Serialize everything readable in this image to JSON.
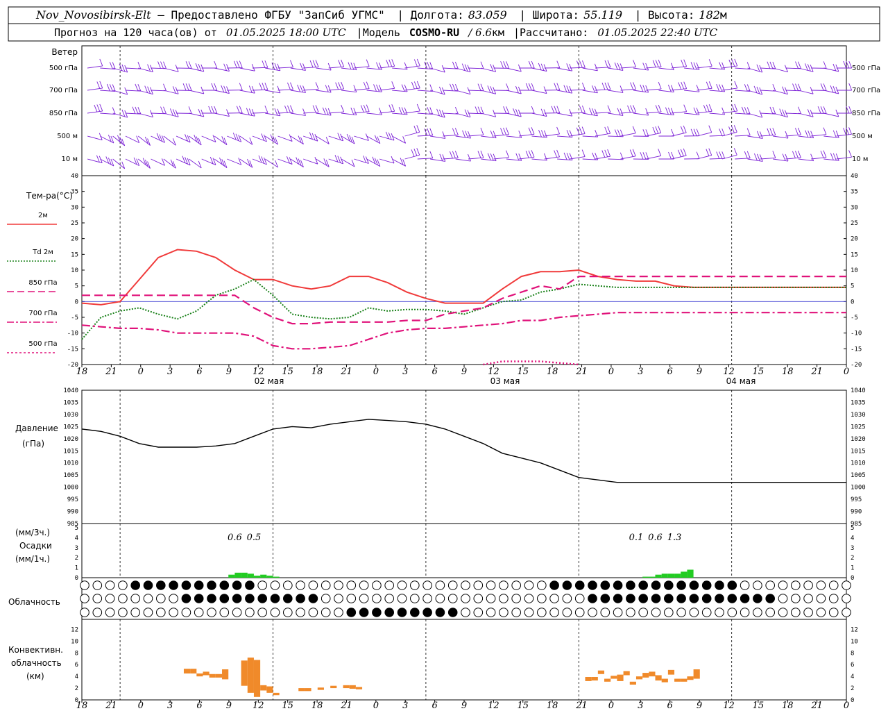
{
  "header": {
    "station": "Nov_Novosibirsk-Elt",
    "provider": " – Предоставлено ФГБУ \"ЗапСиб УГМС\"",
    "lon_label": "Долгота:",
    "lon_value": "83.059",
    "lat_label": "Широта:",
    "lat_value": "55.119",
    "alt_label": "Высота:",
    "alt_value": "182",
    "alt_unit": "м",
    "forecast_prefix": "Прогноз на 120 часа(ов) от",
    "forecast_start": "01.05.2025 18:00 UTC",
    "model_label": "Модель",
    "model_name": "COSMO-RU",
    "model_res": "/ 6.6",
    "model_res_unit": "км",
    "computed_label": "Рассчитано:",
    "computed_time": "01.05.2025 22:40 UTC"
  },
  "time_axis": {
    "hour_ticks": [
      "18",
      "21",
      "0",
      "3",
      "6",
      "9",
      "12",
      "15",
      "18",
      "21",
      "0",
      "3",
      "6",
      "9",
      "12",
      "15",
      "18",
      "21",
      "0",
      "3",
      "6",
      "9",
      "12",
      "15",
      "18",
      "21",
      "0"
    ],
    "date_labels": [
      "02 мая",
      "03 мая",
      "04 мая"
    ]
  },
  "wind_panel": {
    "title": "Ветер",
    "levels": [
      "500 гПа",
      "700 гПа",
      "850 гПа",
      "500 м",
      "10 м"
    ],
    "right_levels": [
      "500 гПа",
      "700 гПа",
      "850 гПа",
      "500 м",
      "10 м"
    ],
    "barb_color": "#7b1fd6"
  },
  "temp_panel": {
    "title": "Тем-ра(°С)",
    "ylim": [
      -20,
      40
    ],
    "yticks": [
      "40",
      "35",
      "30",
      "25",
      "20",
      "15",
      "10",
      "5",
      "0",
      "-5",
      "-10",
      "-15",
      "-20"
    ],
    "legend": [
      {
        "label": "2м",
        "color": "#f03a3a",
        "style": "solid"
      },
      {
        "label": "Td",
        "label2": "2м",
        "color": "#188018",
        "style": "dotted"
      },
      {
        "label": "850 гПа",
        "color": "#e0127a",
        "style": "dash"
      },
      {
        "label": "700 гПа",
        "color": "#e0127a",
        "style": "dashdot"
      },
      {
        "label": "500 гПа",
        "color": "#e0127a",
        "style": "dot"
      }
    ]
  },
  "pressure_panel": {
    "title": "Давление",
    "unit": "(гПа)",
    "ylim": [
      985,
      1040
    ],
    "yticks": [
      "1040",
      "1035",
      "1030",
      "1025",
      "1020",
      "1015",
      "1010",
      "1005",
      "1000",
      "995",
      "990",
      "985"
    ]
  },
  "precip_panel": {
    "unit_top": "(мм/3ч.)",
    "title": "Осадки",
    "unit_bottom": "(мм/1ч.)",
    "yticks": [
      "5",
      "4",
      "3",
      "2",
      "1",
      "0"
    ],
    "value_labels": [
      {
        "text": "0.6",
        "hour": 24
      },
      {
        "text": "0.5",
        "hour": 27
      },
      {
        "text": "0.1",
        "hour": 87
      },
      {
        "text": "0.6",
        "hour": 90
      },
      {
        "text": "1.3",
        "hour": 93
      }
    ],
    "bar_color": "#22cc22"
  },
  "cloud_panel": {
    "title": "Облачность"
  },
  "conv_panel": {
    "title1": "Конвективн.",
    "title2": "облачность",
    "unit": "(км)",
    "yticks": [
      "12",
      "10",
      "8",
      "6",
      "4",
      "2",
      "0"
    ],
    "bar_color": "#f08a2a"
  },
  "chart_data": {
    "type": "line",
    "x_hours_from_start": [
      0,
      3,
      6,
      9,
      12,
      15,
      18,
      21,
      24,
      27,
      30,
      33,
      36,
      39,
      42,
      45,
      48,
      51,
      54,
      57,
      60,
      63,
      66,
      69,
      72,
      75,
      78,
      81,
      84,
      87,
      90,
      93,
      96,
      99,
      102,
      105,
      108,
      111,
      114,
      117,
      120
    ],
    "series": [
      {
        "name": "2м",
        "values": [
          -0.5,
          -1,
          0,
          7,
          14,
          16.5,
          16,
          14,
          10,
          7,
          7,
          5,
          4,
          5,
          8,
          8,
          6,
          3,
          1,
          -0.5,
          -0.5,
          -0.5,
          4,
          8,
          9.5,
          9.5,
          10,
          8,
          7,
          6.5,
          6.5,
          5,
          4.5,
          4.5,
          4.5,
          4.5,
          4.5,
          4.5,
          4.5,
          4.5,
          4.5
        ]
      },
      {
        "name": "Td 2м",
        "values": [
          -12,
          -5,
          -3,
          -2,
          -4,
          -5.5,
          -3,
          2,
          4,
          7,
          2,
          -4,
          -5,
          -5.5,
          -5,
          -2,
          -3,
          -2.5,
          -2.5,
          -3,
          -4,
          -2,
          0,
          0.5,
          3,
          4,
          5.5,
          5,
          4.5,
          4.5,
          4.5,
          4.5,
          4.5,
          4.5,
          4.5,
          4.5,
          4.5,
          4.5,
          4.5,
          4.5,
          4.5
        ]
      },
      {
        "name": "850 гПа",
        "values": [
          2,
          2,
          2,
          2,
          2,
          2,
          2,
          2,
          2,
          -2,
          -5,
          -7,
          -7,
          -6.5,
          -6.5,
          -6.5,
          -6.5,
          -6,
          -6,
          -4,
          -3,
          -2,
          1,
          3,
          5,
          4,
          8,
          8,
          8,
          8,
          8,
          8,
          8,
          8,
          8,
          8,
          8,
          8,
          8,
          8,
          8
        ]
      },
      {
        "name": "700 гПа",
        "values": [
          -7.5,
          -8,
          -8.5,
          -8.5,
          -9,
          -10,
          -10,
          -10,
          -10,
          -11,
          -14,
          -15,
          -15,
          -14.5,
          -14,
          -12,
          -10,
          -9,
          -8.5,
          -8.5,
          -8,
          -7.5,
          -7,
          -6,
          -6,
          -5,
          -4.5,
          -4,
          -3.5,
          -3.5,
          -3.5,
          -3.5,
          -3.5,
          -3.5,
          -3.5,
          -3.5,
          -3.5,
          -3.5,
          -3.5,
          -3.5,
          -3.5
        ]
      },
      {
        "name": "500 гПа",
        "values": [
          null,
          null,
          null,
          null,
          null,
          null,
          null,
          null,
          null,
          null,
          null,
          null,
          null,
          null,
          null,
          null,
          null,
          null,
          null,
          null,
          null,
          -20,
          -19,
          -19,
          -19,
          -19.5,
          -20,
          null,
          null,
          null,
          null,
          null,
          null,
          null,
          null,
          null,
          null,
          null,
          null,
          null,
          null
        ]
      },
      {
        "name": "Давление",
        "values": [
          1024,
          1023,
          1021,
          1018,
          1016.5,
          1016.5,
          1016.5,
          1017,
          1018,
          1021,
          1024,
          1025,
          1024.5,
          1026,
          1027,
          1028,
          1027.5,
          1027,
          1026,
          1024,
          1021,
          1018,
          1014,
          1012,
          1010,
          1007,
          1004,
          1003,
          1002,
          1002,
          1002,
          1002,
          1002,
          1002,
          1002,
          1002,
          1002,
          1002,
          1002,
          1002,
          1002
        ]
      }
    ],
    "precip_mm_per_1h": [
      {
        "hour": 23,
        "value": 0.3
      },
      {
        "hour": 24,
        "value": 0.5
      },
      {
        "hour": 25,
        "value": 0.5
      },
      {
        "hour": 26,
        "value": 0.4
      },
      {
        "hour": 27,
        "value": 0.2
      },
      {
        "hour": 28,
        "value": 0.3
      },
      {
        "hour": 29,
        "value": 0.2
      },
      {
        "hour": 30,
        "value": 0.1
      },
      {
        "hour": 88,
        "value": 0.1
      },
      {
        "hour": 89,
        "value": 0.1
      },
      {
        "hour": 90,
        "value": 0.3
      },
      {
        "hour": 91,
        "value": 0.4
      },
      {
        "hour": 92,
        "value": 0.4
      },
      {
        "hour": 93,
        "value": 0.4
      },
      {
        "hour": 94,
        "value": 0.6
      },
      {
        "hour": 95,
        "value": 0.8
      }
    ],
    "convective_cloud_km": [
      {
        "hour": 16,
        "bottom": 4.5,
        "top": 5.3
      },
      {
        "hour": 17,
        "bottom": 4.5,
        "top": 5.3
      },
      {
        "hour": 18,
        "bottom": 4,
        "top": 4.5
      },
      {
        "hour": 19,
        "bottom": 4.2,
        "top": 4.8
      },
      {
        "hour": 20,
        "bottom": 3.8,
        "top": 4.4
      },
      {
        "hour": 21,
        "bottom": 3.8,
        "top": 4.4
      },
      {
        "hour": 22,
        "bottom": 3.5,
        "top": 5.2
      },
      {
        "hour": 25,
        "bottom": 2.4,
        "top": 6.7
      },
      {
        "hour": 26,
        "bottom": 1.2,
        "top": 7.2
      },
      {
        "hour": 27,
        "bottom": 0.5,
        "top": 6.8
      },
      {
        "hour": 28,
        "bottom": 1.6,
        "top": 2.5
      },
      {
        "hour": 29,
        "bottom": 1.2,
        "top": 2.3
      },
      {
        "hour": 30,
        "bottom": 0.8,
        "top": 1.2
      },
      {
        "hour": 34,
        "bottom": 1.5,
        "top": 2
      },
      {
        "hour": 35,
        "bottom": 1.5,
        "top": 2
      },
      {
        "hour": 37,
        "bottom": 1.7,
        "top": 2.1
      },
      {
        "hour": 39,
        "bottom": 2,
        "top": 2.4
      },
      {
        "hour": 41,
        "bottom": 2,
        "top": 2.5
      },
      {
        "hour": 42,
        "bottom": 1.9,
        "top": 2.5
      },
      {
        "hour": 43,
        "bottom": 1.8,
        "top": 2.2
      },
      {
        "hour": 79,
        "bottom": 3.2,
        "top": 3.9
      },
      {
        "hour": 80,
        "bottom": 3.3,
        "top": 3.9
      },
      {
        "hour": 81,
        "bottom": 4.4,
        "top": 5
      },
      {
        "hour": 82,
        "bottom": 3.1,
        "top": 3.6
      },
      {
        "hour": 83,
        "bottom": 3.6,
        "top": 4.1
      },
      {
        "hour": 84,
        "bottom": 3.2,
        "top": 4.3
      },
      {
        "hour": 85,
        "bottom": 4.2,
        "top": 4.9
      },
      {
        "hour": 86,
        "bottom": 2.6,
        "top": 3.1
      },
      {
        "hour": 87,
        "bottom": 3.5,
        "top": 4
      },
      {
        "hour": 88,
        "bottom": 3.8,
        "top": 4.6
      },
      {
        "hour": 89,
        "bottom": 4,
        "top": 4.8
      },
      {
        "hour": 90,
        "bottom": 3.3,
        "top": 4.2
      },
      {
        "hour": 91,
        "bottom": 3,
        "top": 3.6
      },
      {
        "hour": 92,
        "bottom": 4.3,
        "top": 5.1
      },
      {
        "hour": 93,
        "bottom": 3.1,
        "top": 3.6
      },
      {
        "hour": 94,
        "bottom": 3.1,
        "top": 3.6
      },
      {
        "hour": 95,
        "bottom": 3.4,
        "top": 4
      },
      {
        "hour": 96,
        "bottom": 3.6,
        "top": 5.2
      }
    ]
  }
}
